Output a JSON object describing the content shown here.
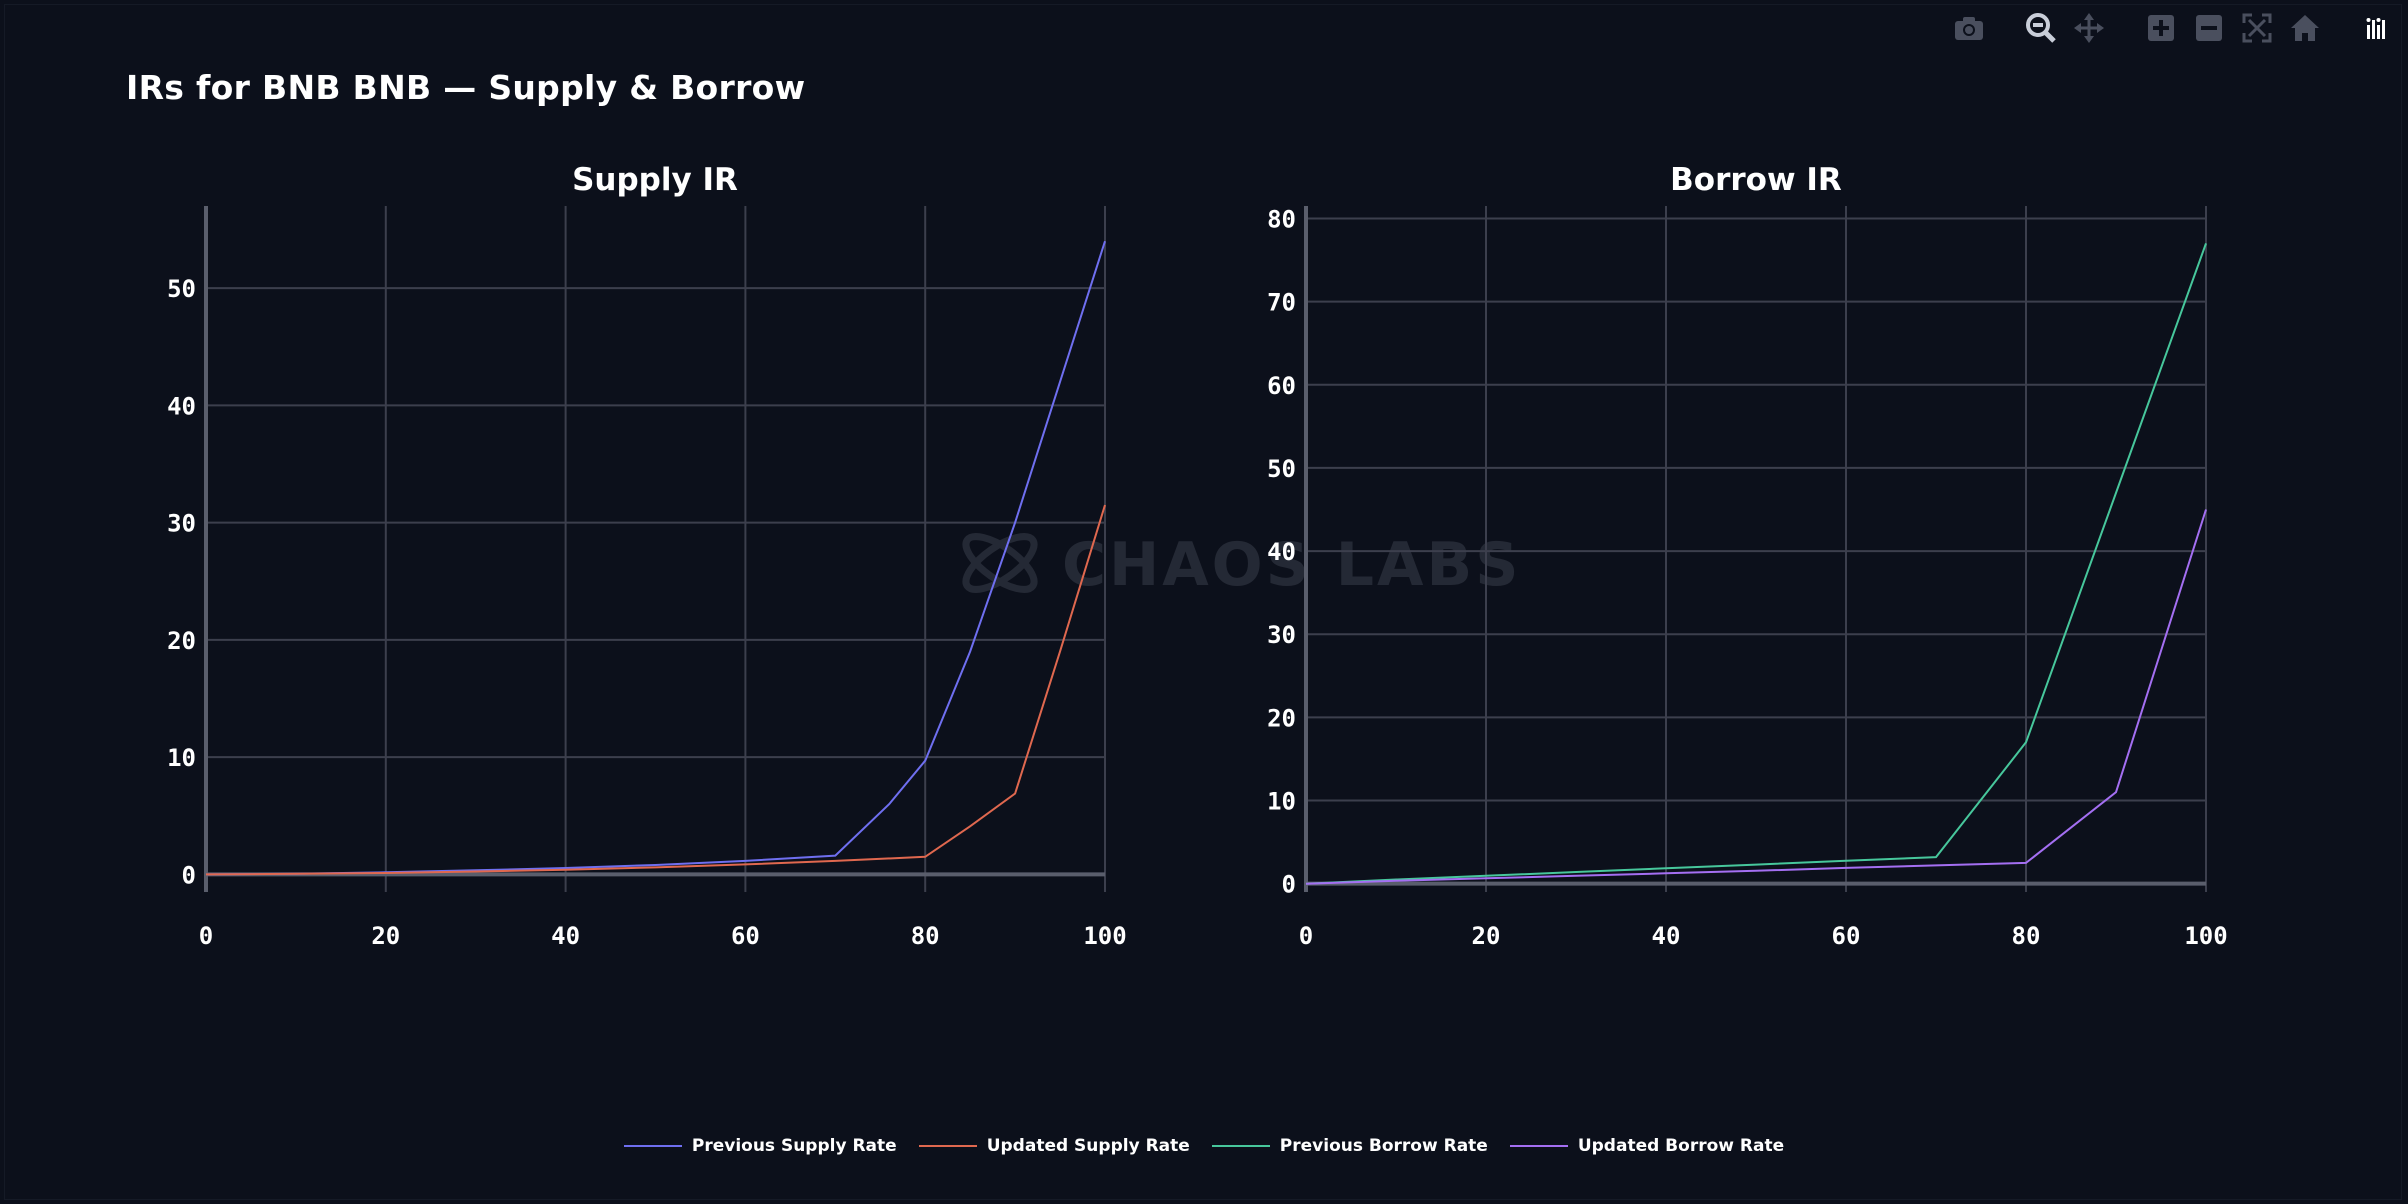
{
  "title": "IRs for BNB BNB — Supply & Borrow",
  "watermark": "CHAOS LABS",
  "modebar": {
    "icons": [
      "camera-icon",
      "zoom-icon",
      "pan-icon",
      "zoom-in-icon",
      "zoom-out-icon",
      "autoscale-icon",
      "home-icon",
      "plotly-logo-icon"
    ]
  },
  "colors": {
    "background": "#0c101b",
    "grid": "#3c3f4d",
    "prev_supply": "#6f6ff0",
    "upd_supply": "#e0684f",
    "prev_borrow": "#47c79c",
    "upd_borrow": "#a46ff2"
  },
  "chart_data": [
    {
      "type": "line",
      "title": "Supply IR",
      "xlim": [
        0,
        100
      ],
      "ylim": [
        -1.5,
        57
      ],
      "xticks": [
        0,
        20,
        40,
        60,
        80,
        100
      ],
      "yticks": [
        0,
        10,
        20,
        30,
        40,
        50
      ],
      "grid": true,
      "series": [
        {
          "name": "Previous Supply Rate",
          "color": "#6f6ff0",
          "x": [
            0,
            10,
            20,
            30,
            40,
            50,
            60,
            70,
            76,
            80,
            85,
            90,
            95,
            100
          ],
          "y": [
            0,
            0.06,
            0.18,
            0.35,
            0.55,
            0.8,
            1.15,
            1.6,
            6.0,
            9.7,
            19,
            30,
            42,
            54
          ]
        },
        {
          "name": "Updated Supply Rate",
          "color": "#e0684f",
          "x": [
            0,
            10,
            20,
            30,
            40,
            50,
            60,
            70,
            80,
            85,
            90,
            95,
            100
          ],
          "y": [
            0,
            0.05,
            0.12,
            0.25,
            0.4,
            0.6,
            0.85,
            1.15,
            1.5,
            4.1,
            6.9,
            19,
            31.5
          ]
        }
      ]
    },
    {
      "type": "line",
      "title": "Borrow IR",
      "xlim": [
        0,
        100
      ],
      "ylim": [
        -1,
        81.5
      ],
      "xticks": [
        0,
        20,
        40,
        60,
        80,
        100
      ],
      "yticks": [
        0,
        10,
        20,
        30,
        40,
        50,
        60,
        70,
        80
      ],
      "grid": true,
      "series": [
        {
          "name": "Previous Borrow Rate",
          "color": "#47c79c",
          "x": [
            0,
            10,
            20,
            30,
            40,
            50,
            60,
            70,
            80,
            90,
            100
          ],
          "y": [
            0,
            0.5,
            0.95,
            1.4,
            1.85,
            2.3,
            2.75,
            3.2,
            17,
            47,
            77
          ]
        },
        {
          "name": "Updated Borrow Rate",
          "color": "#a46ff2",
          "x": [
            0,
            10,
            20,
            30,
            40,
            50,
            60,
            70,
            80,
            90,
            100
          ],
          "y": [
            0,
            0.35,
            0.65,
            0.95,
            1.25,
            1.55,
            1.9,
            2.2,
            2.5,
            11,
            45
          ]
        }
      ]
    }
  ],
  "legend": [
    {
      "label": "Previous Supply Rate",
      "color": "#6f6ff0"
    },
    {
      "label": "Updated Supply Rate",
      "color": "#e0684f"
    },
    {
      "label": "Previous Borrow Rate",
      "color": "#47c79c"
    },
    {
      "label": "Updated Borrow Rate",
      "color": "#a46ff2"
    }
  ]
}
